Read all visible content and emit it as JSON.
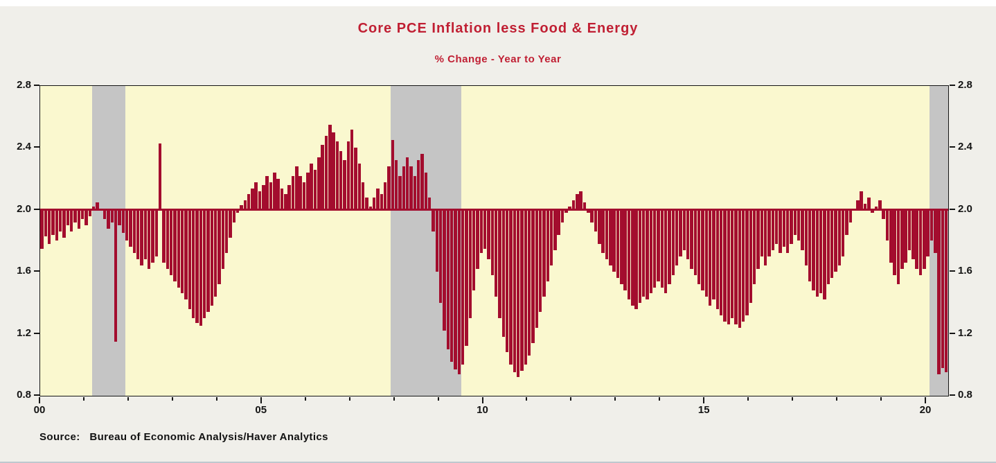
{
  "figure": {
    "title": "Core PCE Inflation less Food & Energy",
    "subtitle": "% Change - Year to Year",
    "source": "Source:   Bureau of Economic Analysis/Haver Analytics",
    "colors": {
      "title_red": "#C01F33",
      "bar_red": "#A30D2E",
      "plot_yellow": "#FAF8CF",
      "recession_gray": "#C5C5C5",
      "outer_gray": "#F0EFEA",
      "axis_black": "#141414"
    }
  },
  "chart_data": {
    "type": "bar",
    "title": "Core PCE Inflation less Food & Energy",
    "subtitle": "% Change - Year to Year",
    "xlabel": "",
    "ylabel": "",
    "legend": "none",
    "grid": "off",
    "baseline": 2.0,
    "frequency": "monthly",
    "x_start_year": 2000,
    "xlim": [
      2000,
      2020.5
    ],
    "ylim": [
      0.8,
      2.8
    ],
    "yticks": [
      0.8,
      1.2,
      1.6,
      2.0,
      2.4,
      2.8
    ],
    "xticks": [
      {
        "value": 2000,
        "label": "00"
      },
      {
        "value": 2005,
        "label": "05"
      },
      {
        "value": 2010,
        "label": "10"
      },
      {
        "value": 2015,
        "label": "15"
      },
      {
        "value": 2020,
        "label": "20"
      }
    ],
    "minor_xtick_step_years": 1,
    "shaded_regions": [
      [
        2001.17,
        2001.92
      ],
      [
        2007.92,
        2009.5
      ],
      [
        2020.08,
        2020.5
      ]
    ],
    "series": [
      {
        "name": "Core PCE Inflation less Food & Energy (% Change Year to Year)",
        "values": [
          1.75,
          1.83,
          1.78,
          1.84,
          1.8,
          1.86,
          1.82,
          1.9,
          1.86,
          1.92,
          1.88,
          1.94,
          1.9,
          1.96,
          2.02,
          2.05,
          2.0,
          1.94,
          1.88,
          1.92,
          1.15,
          1.9,
          1.85,
          1.8,
          1.76,
          1.72,
          1.68,
          1.64,
          1.68,
          1.62,
          1.66,
          1.7,
          2.43,
          1.66,
          1.62,
          1.58,
          1.54,
          1.5,
          1.46,
          1.42,
          1.36,
          1.3,
          1.27,
          1.25,
          1.3,
          1.34,
          1.38,
          1.44,
          1.52,
          1.62,
          1.72,
          1.82,
          1.92,
          1.98,
          2.03,
          2.06,
          2.1,
          2.14,
          2.18,
          2.12,
          2.16,
          2.22,
          2.18,
          2.24,
          2.2,
          2.14,
          2.1,
          2.16,
          2.22,
          2.28,
          2.22,
          2.18,
          2.24,
          2.3,
          2.26,
          2.34,
          2.42,
          2.48,
          2.55,
          2.5,
          2.44,
          2.38,
          2.32,
          2.44,
          2.52,
          2.4,
          2.3,
          2.18,
          2.08,
          2.02,
          2.08,
          2.14,
          2.1,
          2.18,
          2.28,
          2.45,
          2.32,
          2.22,
          2.28,
          2.34,
          2.28,
          2.22,
          2.32,
          2.36,
          2.24,
          2.08,
          1.86,
          1.6,
          1.4,
          1.22,
          1.1,
          1.02,
          0.97,
          0.94,
          1.0,
          1.12,
          1.3,
          1.48,
          1.62,
          1.72,
          1.75,
          1.68,
          1.58,
          1.44,
          1.3,
          1.18,
          1.08,
          1.0,
          0.95,
          0.92,
          0.96,
          1.0,
          1.06,
          1.14,
          1.24,
          1.34,
          1.44,
          1.54,
          1.64,
          1.74,
          1.84,
          1.92,
          1.98,
          2.02,
          2.06,
          2.1,
          2.12,
          2.05,
          1.98,
          1.92,
          1.86,
          1.78,
          1.72,
          1.68,
          1.64,
          1.6,
          1.56,
          1.52,
          1.48,
          1.42,
          1.38,
          1.36,
          1.4,
          1.44,
          1.42,
          1.46,
          1.5,
          1.54,
          1.5,
          1.46,
          1.52,
          1.58,
          1.64,
          1.7,
          1.74,
          1.68,
          1.62,
          1.58,
          1.52,
          1.48,
          1.44,
          1.38,
          1.42,
          1.36,
          1.32,
          1.28,
          1.26,
          1.3,
          1.26,
          1.24,
          1.28,
          1.32,
          1.4,
          1.52,
          1.62,
          1.7,
          1.64,
          1.7,
          1.74,
          1.78,
          1.72,
          1.76,
          1.72,
          1.78,
          1.84,
          1.8,
          1.74,
          1.64,
          1.54,
          1.48,
          1.44,
          1.46,
          1.42,
          1.52,
          1.56,
          1.6,
          1.64,
          1.7,
          1.84,
          1.92,
          2.0,
          2.06,
          2.12,
          2.04,
          2.08,
          1.98,
          2.02,
          2.06,
          1.94,
          1.8,
          1.66,
          1.58,
          1.52,
          1.62,
          1.66,
          1.74,
          1.68,
          1.62,
          1.58,
          1.62,
          1.7,
          1.8,
          1.72,
          0.94,
          0.98,
          0.95
        ]
      }
    ]
  }
}
